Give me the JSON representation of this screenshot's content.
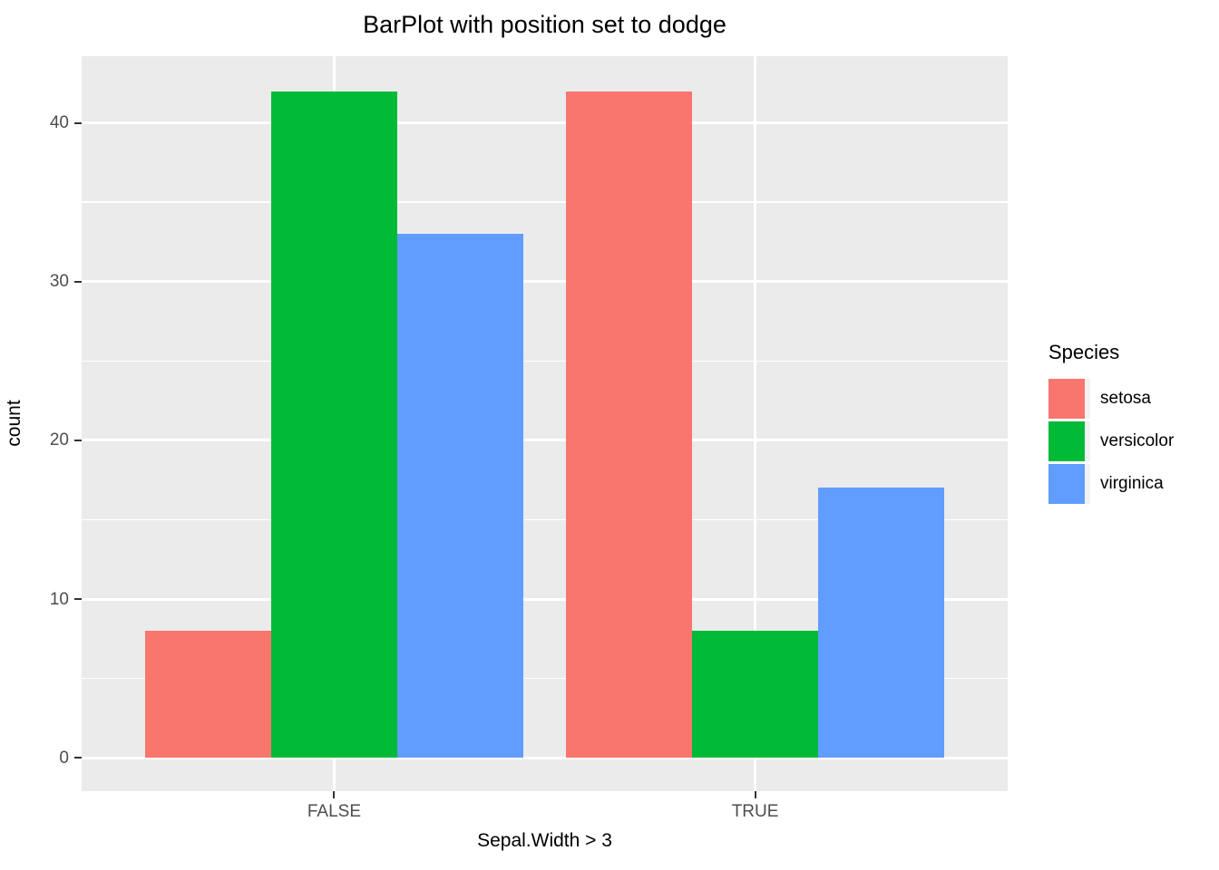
{
  "chart_data": {
    "type": "bar",
    "position": "dodge",
    "title": "BarPlot with position set to dodge",
    "xlabel": "Sepal.Width > 3",
    "ylabel": "count",
    "categories": [
      "FALSE",
      "TRUE"
    ],
    "series": [
      {
        "name": "setosa",
        "color": "#F8766D",
        "values": [
          8,
          42
        ]
      },
      {
        "name": "versicolor",
        "color": "#00BA38",
        "values": [
          42,
          8
        ]
      },
      {
        "name": "virginica",
        "color": "#619CFF",
        "values": [
          33,
          17
        ]
      }
    ],
    "legend_title": "Species",
    "legend_position": "right",
    "y_ticks": [
      0,
      10,
      20,
      30,
      40
    ],
    "y_minor_ticks": [
      5,
      15,
      25,
      35
    ],
    "ylim": [
      -2.1,
      44.2
    ],
    "grid": true,
    "x_positions": [
      0.2727,
      0.7273
    ],
    "group_width_fraction": 0.4091,
    "colors": {
      "panel_bg": "#EBEBEB",
      "grid": "#FFFFFF",
      "tick_label": "#4D4D4D",
      "tick_mark": "#333333",
      "text": "#000000"
    }
  }
}
